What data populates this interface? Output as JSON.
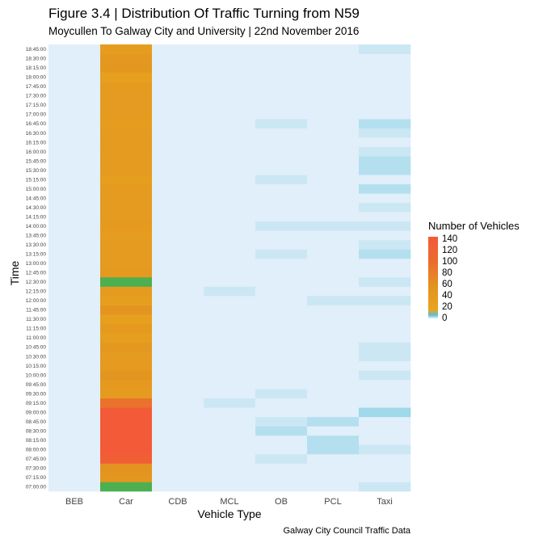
{
  "chart_data": {
    "type": "heatmap",
    "title": "Figure 3.4 | Distribution Of Traffic Turning from N59",
    "subtitle": "Moycullen To Galway City and University | 22nd November 2016",
    "xlabel": "Vehicle Type",
    "ylabel": "Time",
    "caption": "Galway City Council Traffic Data",
    "legend_title": "Number of Vehicles",
    "legend_ticks": [
      0,
      20,
      40,
      60,
      80,
      100,
      120,
      140
    ],
    "legend_colors": [
      "#e1effa",
      "#5bc0d8",
      "#e8a41e",
      "#e3931f",
      "#ec6a30",
      "#f25a38"
    ],
    "grid": true,
    "x": [
      "BEB",
      "Car",
      "CDB",
      "MCL",
      "OB",
      "PCL",
      "Taxi"
    ],
    "y": [
      "07:00:00",
      "07:15:00",
      "07:30:00",
      "07:45:00",
      "08:00:00",
      "08:15:00",
      "08:30:00",
      "08:45:00",
      "09:00:00",
      "09:15:00",
      "09:30:00",
      "09:45:00",
      "10:00:00",
      "10:15:00",
      "10:30:00",
      "10:45:00",
      "11:00:00",
      "11:15:00",
      "11:30:00",
      "11:45:00",
      "12:00:00",
      "12:15:00",
      "12:30:00",
      "12:45:00",
      "13:00:00",
      "13:15:00",
      "13:30:00",
      "13:45:00",
      "14:00:00",
      "14:15:00",
      "14:30:00",
      "14:45:00",
      "15:00:00",
      "15:15:00",
      "15:30:00",
      "15:45:00",
      "16:00:00",
      "16:15:00",
      "16:30:00",
      "16:45:00",
      "17:00:00",
      "17:15:00",
      "17:30:00",
      "17:45:00",
      "18:00:00",
      "18:15:00",
      "18:30:00",
      "18:45:00"
    ],
    "values": {
      "BEB": [
        0,
        0,
        0,
        0,
        0,
        0,
        0,
        0,
        0,
        0,
        0,
        0,
        0,
        0,
        0,
        0,
        0,
        0,
        0,
        0,
        0,
        0,
        0,
        0,
        0,
        0,
        0,
        0,
        0,
        0,
        0,
        0,
        0,
        0,
        0,
        0,
        0,
        0,
        0,
        0,
        0,
        0,
        0,
        0,
        0,
        0,
        0,
        0
      ],
      "Car": [
        8,
        46,
        55,
        130,
        140,
        140,
        140,
        140,
        140,
        90,
        36,
        38,
        52,
        38,
        36,
        44,
        28,
        38,
        24,
        52,
        30,
        36,
        8,
        40,
        36,
        36,
        36,
        34,
        38,
        36,
        36,
        36,
        36,
        30,
        36,
        36,
        36,
        36,
        36,
        34,
        36,
        36,
        36,
        36,
        26,
        46,
        44,
        34
      ],
      "CDB": [
        0,
        0,
        0,
        0,
        0,
        0,
        0,
        0,
        0,
        0,
        0,
        0,
        0,
        0,
        0,
        0,
        0,
        0,
        0,
        0,
        0,
        0,
        0,
        0,
        0,
        0,
        0,
        0,
        0,
        0,
        0,
        0,
        0,
        0,
        0,
        0,
        0,
        0,
        0,
        0,
        0,
        0,
        0,
        0,
        0,
        0,
        0,
        0
      ],
      "MCL": [
        0,
        0,
        0,
        0,
        0,
        0,
        0,
        0,
        0,
        1,
        0,
        0,
        0,
        0,
        0,
        0,
        0,
        0,
        0,
        0,
        0,
        1,
        0,
        0,
        0,
        0,
        0,
        0,
        0,
        0,
        0,
        0,
        0,
        0,
        0,
        0,
        0,
        0,
        0,
        0,
        0,
        0,
        0,
        0,
        0,
        0,
        0,
        0
      ],
      "OB": [
        0,
        0,
        0,
        1,
        0,
        0,
        2,
        1,
        0,
        0,
        1,
        0,
        0,
        0,
        0,
        0,
        0,
        0,
        0,
        0,
        0,
        0,
        0,
        0,
        0,
        1,
        0,
        0,
        1,
        0,
        0,
        0,
        0,
        1,
        0,
        0,
        0,
        0,
        0,
        1,
        0,
        0,
        0,
        0,
        0,
        0,
        0,
        0
      ],
      "PCL": [
        0,
        0,
        0,
        0,
        2,
        2,
        0,
        2,
        0,
        0,
        0,
        0,
        0,
        0,
        0,
        0,
        0,
        0,
        0,
        0,
        1,
        0,
        0,
        0,
        0,
        0,
        0,
        0,
        1,
        0,
        0,
        0,
        0,
        0,
        0,
        0,
        0,
        0,
        0,
        0,
        0,
        0,
        0,
        0,
        0,
        0,
        0,
        0
      ],
      "Taxi": [
        1,
        0,
        0,
        0,
        1,
        0,
        0,
        0,
        3,
        0,
        0,
        0,
        1,
        0,
        1,
        1,
        0,
        0,
        0,
        0,
        1,
        0,
        1,
        0,
        0,
        2,
        1,
        0,
        1,
        0,
        1,
        0,
        2,
        0,
        2,
        2,
        1,
        0,
        1,
        2,
        0,
        0,
        0,
        0,
        0,
        0,
        0,
        1
      ]
    }
  }
}
